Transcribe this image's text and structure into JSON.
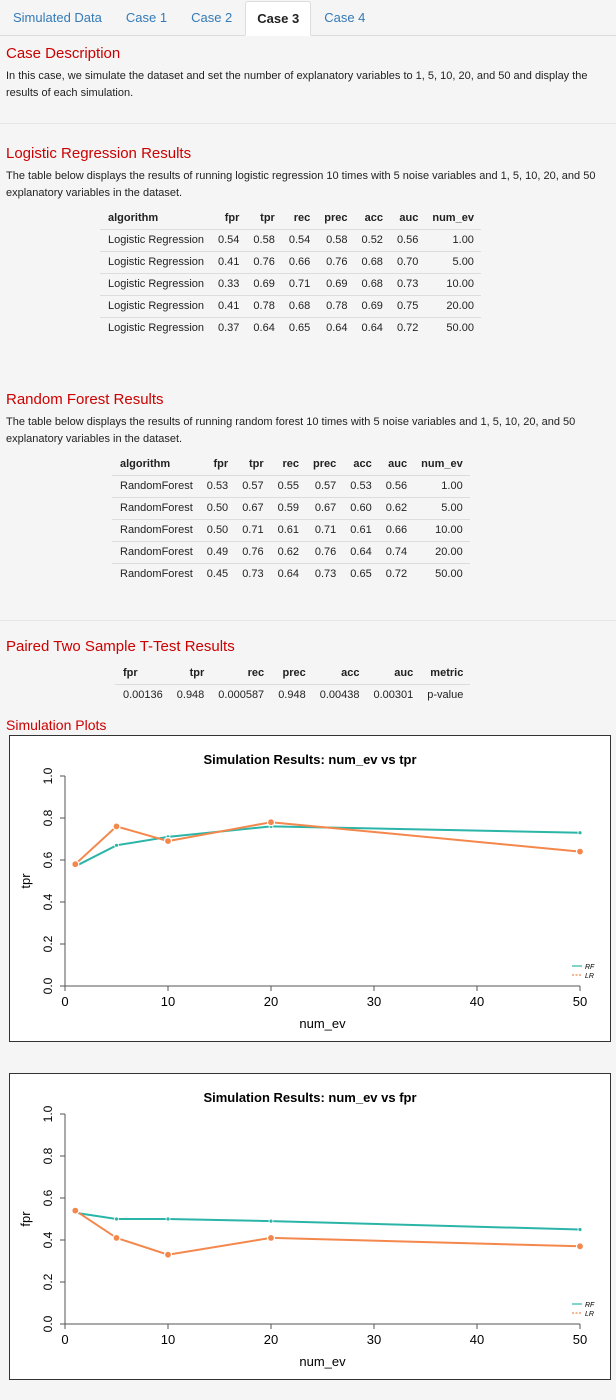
{
  "tabs": [
    "Simulated Data",
    "Case 1",
    "Case 2",
    "Case 3",
    "Case 4"
  ],
  "active_tab": 3,
  "case_description": {
    "title": "Case Description",
    "text": "In this case, we simulate the dataset and set the number of explanatory variables to 1, 5, 10, 20, and 50 and display the results of each simulation."
  },
  "logistic": {
    "title": "Logistic Regression Results",
    "text": "The table below displays the results of running logistic regression 10 times with 5 noise variables and 1, 5, 10, 20, and 50 explanatory variables in the dataset.",
    "headers": [
      "algorithm",
      "fpr",
      "tpr",
      "rec",
      "prec",
      "acc",
      "auc",
      "num_ev"
    ],
    "rows": [
      [
        "Logistic Regression",
        "0.54",
        "0.58",
        "0.54",
        "0.58",
        "0.52",
        "0.56",
        "1.00"
      ],
      [
        "Logistic Regression",
        "0.41",
        "0.76",
        "0.66",
        "0.76",
        "0.68",
        "0.70",
        "5.00"
      ],
      [
        "Logistic Regression",
        "0.33",
        "0.69",
        "0.71",
        "0.69",
        "0.68",
        "0.73",
        "10.00"
      ],
      [
        "Logistic Regression",
        "0.41",
        "0.78",
        "0.68",
        "0.78",
        "0.69",
        "0.75",
        "20.00"
      ],
      [
        "Logistic Regression",
        "0.37",
        "0.64",
        "0.65",
        "0.64",
        "0.64",
        "0.72",
        "50.00"
      ]
    ]
  },
  "random_forest": {
    "title": "Random Forest Results",
    "text": "The table below displays the results of running random forest 10 times with 5 noise variables and 1, 5, 10, 20, and 50 explanatory variables in the dataset.",
    "headers": [
      "algorithm",
      "fpr",
      "tpr",
      "rec",
      "prec",
      "acc",
      "auc",
      "num_ev"
    ],
    "rows": [
      [
        "RandomForest",
        "0.53",
        "0.57",
        "0.55",
        "0.57",
        "0.53",
        "0.56",
        "1.00"
      ],
      [
        "RandomForest",
        "0.50",
        "0.67",
        "0.59",
        "0.67",
        "0.60",
        "0.62",
        "5.00"
      ],
      [
        "RandomForest",
        "0.50",
        "0.71",
        "0.61",
        "0.71",
        "0.61",
        "0.66",
        "10.00"
      ],
      [
        "RandomForest",
        "0.49",
        "0.76",
        "0.62",
        "0.76",
        "0.64",
        "0.74",
        "20.00"
      ],
      [
        "RandomForest",
        "0.45",
        "0.73",
        "0.64",
        "0.73",
        "0.65",
        "0.72",
        "50.00"
      ]
    ]
  },
  "ttest": {
    "title": "Paired Two Sample T-Test Results",
    "headers": [
      "fpr",
      "tpr",
      "rec",
      "prec",
      "acc",
      "auc",
      "metric"
    ],
    "rows": [
      [
        "0.00136",
        "0.948",
        "0.000587",
        "0.948",
        "0.00438",
        "0.00301",
        "p-value"
      ]
    ]
  },
  "simulation_plots": {
    "title": "Simulation Plots"
  },
  "colors": {
    "rf": "#2bb5a8",
    "lr": "#f4874b",
    "title": "#cc0000",
    "link": "#337ab7"
  },
  "chart_data": [
    {
      "type": "line",
      "title": "Simulation Results: num_ev vs tpr",
      "xlabel": "num_ev",
      "ylabel": "tpr",
      "x": [
        1,
        5,
        10,
        20,
        50
      ],
      "series": [
        {
          "name": "RF",
          "values": [
            0.57,
            0.67,
            0.71,
            0.76,
            0.73
          ]
        },
        {
          "name": "LR",
          "values": [
            0.58,
            0.76,
            0.69,
            0.78,
            0.64
          ]
        }
      ],
      "xlim": [
        0,
        50
      ],
      "ylim": [
        0,
        1
      ],
      "xticks": [
        "0",
        "10",
        "20",
        "30",
        "40",
        "50"
      ],
      "yticks": [
        "0.0",
        "0.2",
        "0.4",
        "0.6",
        "0.8",
        "1.0"
      ],
      "legend": "bottom-right"
    },
    {
      "type": "line",
      "title": "Simulation Results: num_ev vs fpr",
      "xlabel": "num_ev",
      "ylabel": "fpr",
      "x": [
        1,
        5,
        10,
        20,
        50
      ],
      "series": [
        {
          "name": "RF",
          "values": [
            0.53,
            0.5,
            0.5,
            0.49,
            0.45
          ]
        },
        {
          "name": "LR",
          "values": [
            0.54,
            0.41,
            0.33,
            0.41,
            0.37
          ]
        }
      ],
      "xlim": [
        0,
        50
      ],
      "ylim": [
        0,
        1
      ],
      "xticks": [
        "0",
        "10",
        "20",
        "30",
        "40",
        "50"
      ],
      "yticks": [
        "0.0",
        "0.2",
        "0.4",
        "0.6",
        "0.8",
        "1.0"
      ],
      "legend": "bottom-right"
    }
  ]
}
